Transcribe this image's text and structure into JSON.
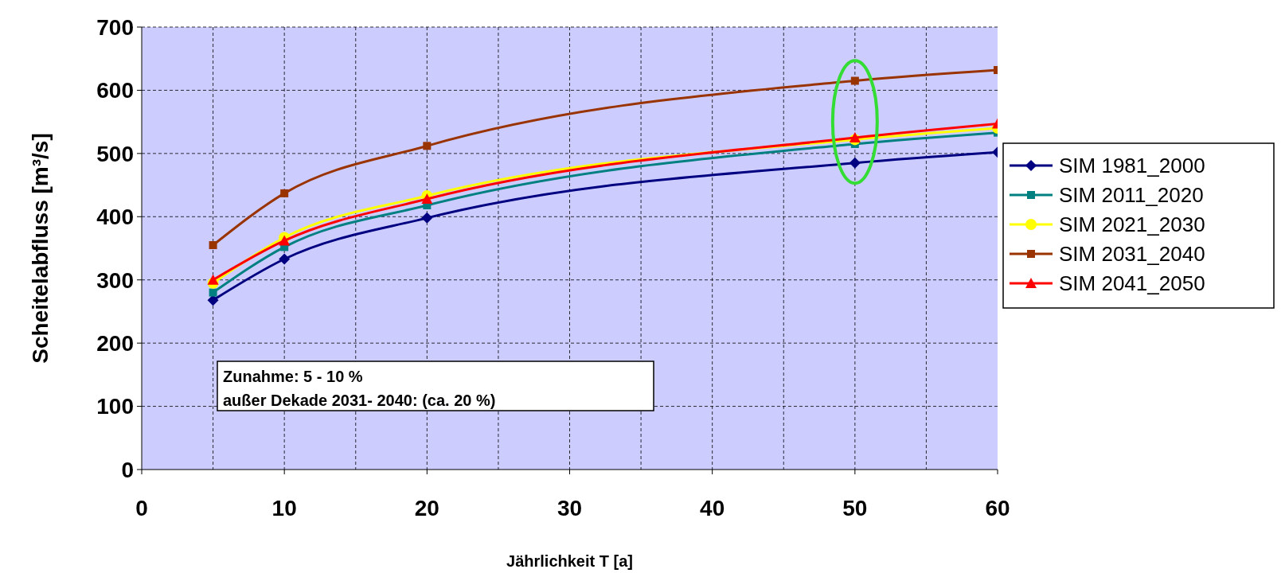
{
  "chart_data": {
    "type": "line",
    "xlabel": "Jährlichkeit T [a]",
    "ylabel": "Scheitelabfluss [m³/s]",
    "xlim": [
      0,
      60
    ],
    "xticks": [
      0,
      10,
      20,
      30,
      40,
      50,
      60
    ],
    "ylim": [
      0,
      700
    ],
    "yticks": [
      0,
      100,
      200,
      300,
      400,
      500,
      600,
      700
    ],
    "grid": true,
    "legend": "right",
    "line_style": "solid",
    "annotations": [
      "Zunahme: 5 - 10 %",
      "außer Dekade 2031- 2040: (ca. 20 %)"
    ],
    "x": [
      5,
      10,
      20,
      50,
      60
    ],
    "series": [
      {
        "name": "SIM 1981_2000",
        "color": "#000080",
        "marker": "diamond",
        "values": [
          268,
          333,
          398,
          485,
          502
        ]
      },
      {
        "name": "SIM 2011_2020",
        "color": "#008080",
        "marker": "square",
        "values": [
          280,
          352,
          418,
          515,
          533
        ]
      },
      {
        "name": "SIM 2021_2030",
        "color": "#ffff00",
        "marker": "circle",
        "values": [
          295,
          367,
          433,
          522,
          540
        ]
      },
      {
        "name": "SIM 2031_2040",
        "color": "#993300",
        "marker": "square",
        "values": [
          355,
          437,
          512,
          615,
          632
        ]
      },
      {
        "name": "SIM 2041_2050",
        "color": "#ff0000",
        "marker": "triangle",
        "values": [
          300,
          362,
          428,
          525,
          547
        ]
      }
    ]
  }
}
